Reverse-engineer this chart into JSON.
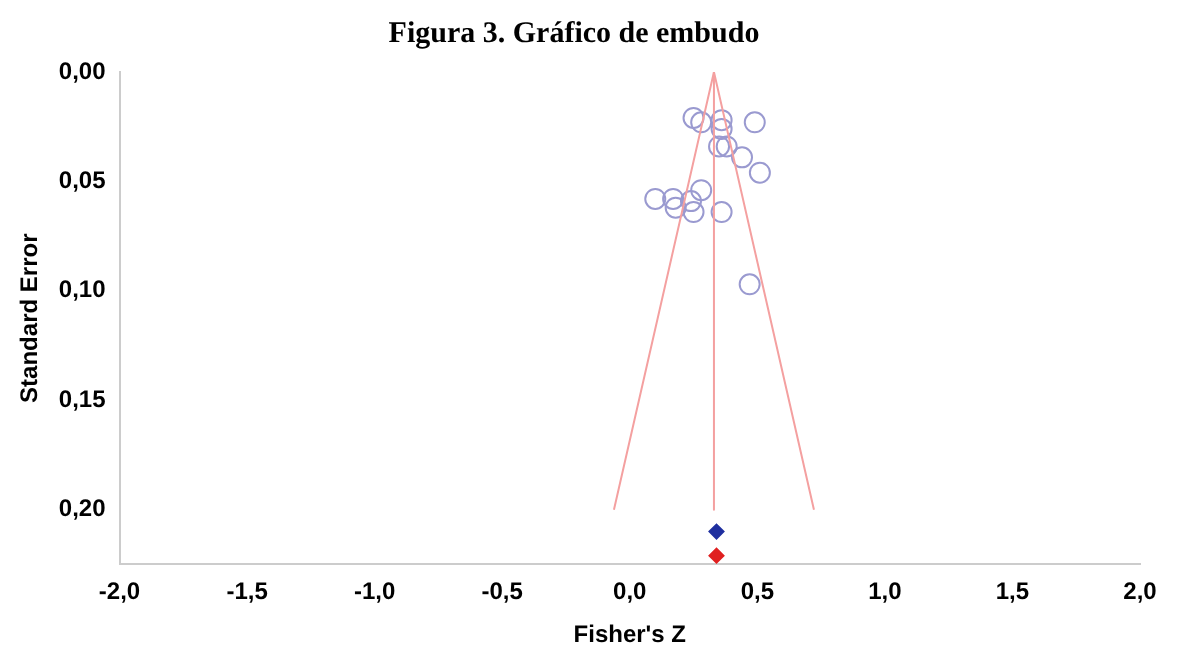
{
  "chart_data": {
    "type": "scatter",
    "title": "Figura 3. Gráfico de embudo",
    "xlabel": "Fisher's Z",
    "ylabel": "Standard Error",
    "xlim": [
      -2,
      2
    ],
    "xticks": [
      {
        "value": -2,
        "label": "-2,0"
      },
      {
        "value": -1.5,
        "label": "-1,5"
      },
      {
        "value": -1,
        "label": "-1,0"
      },
      {
        "value": -0.5,
        "label": "-0,5"
      },
      {
        "value": 0,
        "label": "0,0"
      },
      {
        "value": 0.5,
        "label": "0,5"
      },
      {
        "value": 1,
        "label": "1,0"
      },
      {
        "value": 1.5,
        "label": "1,5"
      },
      {
        "value": 2,
        "label": "2,0"
      }
    ],
    "ylim": [
      0.225,
      0
    ],
    "yticks": [
      {
        "value": 0,
        "label": "0,00"
      },
      {
        "value": 0.05,
        "label": "0,05"
      },
      {
        "value": 0.1,
        "label": "0,10"
      },
      {
        "value": 0.15,
        "label": "0,15"
      },
      {
        "value": 0.2,
        "label": "0,20"
      }
    ],
    "grid": false,
    "legend": false,
    "series": [
      {
        "type": "line",
        "color": "#f4a0a0",
        "marker": "none",
        "x": [
          -0.062,
          0.33,
          0.722
        ],
        "values": [
          0.2,
          0,
          0.2
        ]
      },
      {
        "type": "line",
        "color": "#f4a0a0",
        "marker": "none",
        "x": [
          0.33,
          0.33
        ],
        "values": [
          0,
          0.2
        ]
      },
      {
        "type": "scatter",
        "color": "#9a9ad0",
        "marker": "circle",
        "x": [
          0.25,
          0.28,
          0.36,
          0.49,
          0.36,
          0.35,
          0.38,
          0.44,
          0.51,
          0.1,
          0.17,
          0.18,
          0.24,
          0.28,
          0.25,
          0.36,
          0.47
        ],
        "values": [
          0.021,
          0.023,
          0.022,
          0.023,
          0.026,
          0.034,
          0.034,
          0.039,
          0.046,
          0.058,
          0.058,
          0.062,
          0.059,
          0.054,
          0.064,
          0.064,
          0.097
        ]
      },
      {
        "type": "scatter",
        "color": "#1f2f9f",
        "marker": "diamond",
        "x": [
          0.34
        ],
        "values": [
          0.21
        ]
      },
      {
        "type": "scatter",
        "color": "#e02020",
        "marker": "diamond",
        "x": [
          0.34
        ],
        "values": [
          0.221
        ]
      }
    ]
  }
}
